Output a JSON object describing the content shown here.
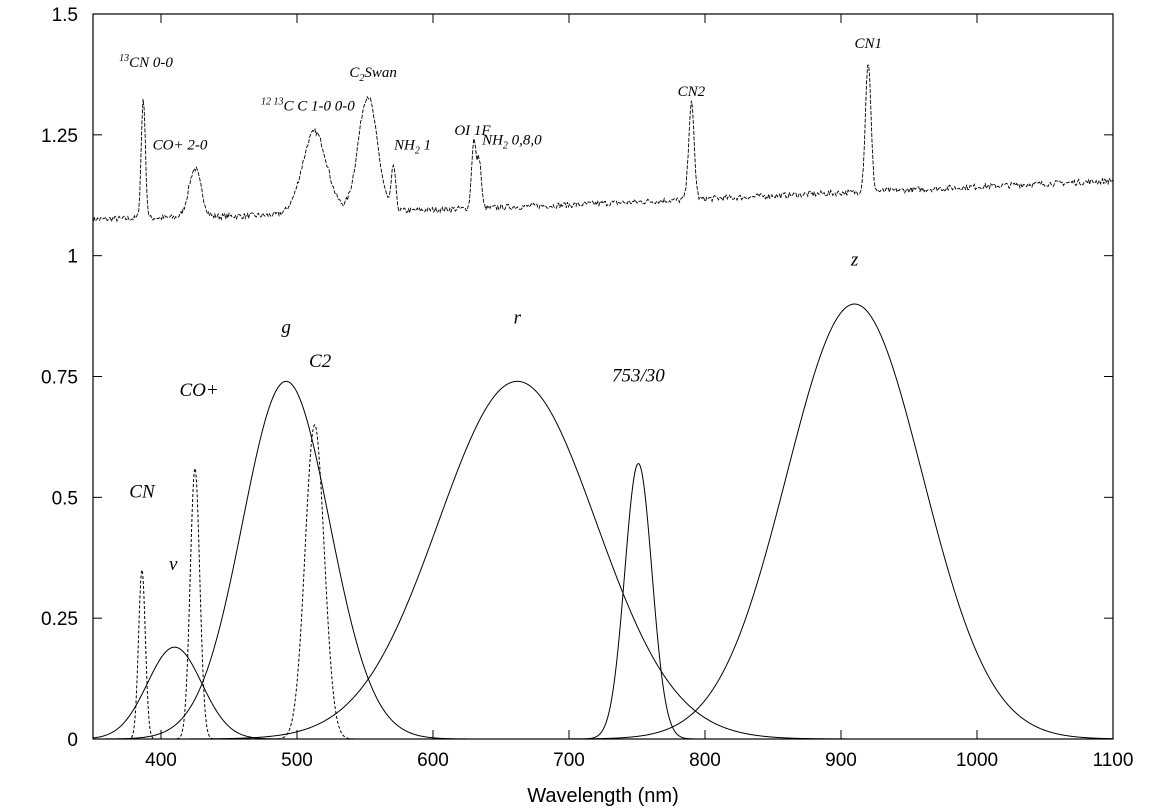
{
  "chart_data": {
    "type": "line",
    "title": "",
    "xlabel": "Wavelength (nm)",
    "ylabel": "",
    "xlim": [
      350,
      1100
    ],
    "ylim": [
      0,
      1.5
    ],
    "grid": false,
    "legend": "none",
    "x_ticks": [
      {
        "value": 400,
        "label": "400"
      },
      {
        "value": 500,
        "label": "500"
      },
      {
        "value": 600,
        "label": "600"
      },
      {
        "value": 700,
        "label": "700"
      },
      {
        "value": 800,
        "label": "800"
      },
      {
        "value": 900,
        "label": "900"
      },
      {
        "value": 1000,
        "label": "1000"
      },
      {
        "value": 1100,
        "label": "1100"
      }
    ],
    "y_ticks": [
      {
        "value": 0,
        "label": "0"
      },
      {
        "value": 0.25,
        "label": "0.25"
      },
      {
        "value": 0.5,
        "label": "0.5"
      },
      {
        "value": 0.75,
        "label": "0.75"
      },
      {
        "value": 1,
        "label": "1"
      },
      {
        "value": 1.25,
        "label": "1.25"
      },
      {
        "value": 1.5,
        "label": "1.5"
      }
    ],
    "filter_curves": [
      {
        "label": "v",
        "style": "solid",
        "center": 410,
        "peak": 0.19,
        "sigma": 20
      },
      {
        "label": "g",
        "style": "solid",
        "center": 492,
        "peak": 0.74,
        "sigma": 32
      },
      {
        "label": "r",
        "style": "solid",
        "center": 662,
        "peak": 0.74,
        "sigma": 58
      },
      {
        "label": "753/30",
        "style": "solid",
        "center": 751,
        "peak": 0.57,
        "sigma": 10
      },
      {
        "label": "z",
        "style": "solid",
        "center": 910,
        "peak": 0.9,
        "sigma": 50
      },
      {
        "label": "CN",
        "style": "dashed",
        "center": 386,
        "peak": 0.35,
        "sigma": 2.5
      },
      {
        "label": "CO+",
        "style": "dashed",
        "center": 425,
        "peak": 0.56,
        "sigma": 3.5
      },
      {
        "label": "C2",
        "style": "dashed",
        "center": 513,
        "peak": 0.65,
        "sigma": 7
      }
    ],
    "spectrum": {
      "style": "dashed",
      "continuum": [
        [
          350,
          1.075
        ],
        [
          500,
          1.085
        ],
        [
          700,
          1.105
        ],
        [
          900,
          1.13
        ],
        [
          1100,
          1.155
        ]
      ],
      "lines": [
        {
          "center": 387,
          "height": 0.25,
          "width": 1.5
        },
        {
          "center": 425,
          "height": 0.1,
          "width": 4.5
        },
        {
          "center": 513,
          "height": 0.17,
          "width": 9
        },
        {
          "center": 552,
          "height": 0.24,
          "width": 7
        },
        {
          "center": 571,
          "height": 0.09,
          "width": 1.5
        },
        {
          "center": 630,
          "height": 0.14,
          "width": 1.6
        },
        {
          "center": 634,
          "height": 0.1,
          "width": 1.5
        },
        {
          "center": 790,
          "height": 0.2,
          "width": 2
        },
        {
          "center": 920,
          "height": 0.27,
          "width": 2
        }
      ]
    },
    "annotations": [
      {
        "id": "cn00",
        "x": 389,
        "y": 1.39,
        "sup": "13",
        "text": "CN 0-0",
        "size": "small"
      },
      {
        "id": "coplus20",
        "x": 414,
        "y": 1.22,
        "text": "CO+ 2-0",
        "size": "small"
      },
      {
        "id": "c2-1213",
        "x": 508,
        "y": 1.3,
        "sup": "12 13",
        "text": "C C 1-0 0-0",
        "size": "small"
      },
      {
        "id": "c2swan",
        "x": 556,
        "y": 1.37,
        "text": "C",
        "sub": "2",
        "text2": "Swan",
        "size": "small"
      },
      {
        "id": "nh2-1",
        "x": 585,
        "y": 1.22,
        "text": "NH",
        "sub": "2",
        "text2": " 1",
        "size": "small"
      },
      {
        "id": "oi1f",
        "x": 629,
        "y": 1.25,
        "text": "OI 1F",
        "size": "small"
      },
      {
        "id": "nh2-080",
        "x": 658,
        "y": 1.23,
        "text": "NH",
        "sub": "2",
        "text2": " 0,8,0",
        "size": "small"
      },
      {
        "id": "cn2",
        "x": 790,
        "y": 1.33,
        "text": "CN2",
        "size": "small"
      },
      {
        "id": "cn1",
        "x": 920,
        "y": 1.43,
        "text": "CN1",
        "size": "small"
      },
      {
        "id": "cn",
        "x": 386,
        "y": 0.5,
        "text": "CN",
        "size": "big"
      },
      {
        "id": "nu",
        "x": 409,
        "y": 0.35,
        "text": "ν",
        "size": "big"
      },
      {
        "id": "coplus",
        "x": 428,
        "y": 0.71,
        "text": "CO+",
        "size": "big"
      },
      {
        "id": "g",
        "x": 492,
        "y": 0.84,
        "text": "g",
        "size": "big"
      },
      {
        "id": "c2",
        "x": 517,
        "y": 0.77,
        "text": "C2",
        "size": "big"
      },
      {
        "id": "r",
        "x": 662,
        "y": 0.86,
        "text": "r",
        "size": "big"
      },
      {
        "id": "753-30",
        "x": 751,
        "y": 0.74,
        "text": "753/30",
        "size": "big"
      },
      {
        "id": "z",
        "x": 910,
        "y": 0.98,
        "text": "z",
        "size": "big"
      }
    ]
  }
}
